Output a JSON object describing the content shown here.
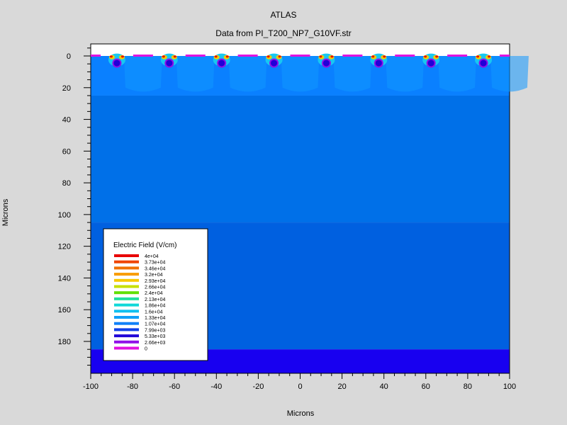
{
  "window": {
    "title": "ATLAS",
    "subtitle": "Data from PI_T200_NP7_G10VF.str"
  },
  "chart_data": {
    "type": "heatmap",
    "title": "ATLAS",
    "subtitle": "Data from PI_T200_NP7_G10VF.str",
    "xlabel": "Microns",
    "ylabel": "Microns",
    "xlim": [
      -100,
      100
    ],
    "ylim": [
      200,
      -3
    ],
    "x_ticks": [
      -100,
      -80,
      -60,
      -40,
      -20,
      0,
      20,
      40,
      60,
      80,
      100
    ],
    "y_ticks": [
      0,
      20,
      40,
      60,
      80,
      100,
      120,
      140,
      160,
      180
    ],
    "x_tick_labels": [
      "-100",
      "-80",
      "-60",
      "-40",
      "-20",
      "0",
      "20",
      "40",
      "60",
      "80",
      "100"
    ],
    "y_tick_labels": [
      "0",
      "20",
      "40",
      "60",
      "80",
      "100",
      "120",
      "140",
      "160",
      "180"
    ],
    "implant_centers_x": [
      -87.5,
      -62.5,
      -37.5,
      -12.5,
      12.5,
      37.5,
      62.5,
      87.5
    ],
    "region_boundaries_y": [
      25,
      105,
      185
    ],
    "colors": {
      "bg": "#d9d9d9",
      "plot_bg": "#ffffff",
      "surface": "#0a80ff",
      "bulk_upper": "#0070e8",
      "bulk_lower": "#0060e0",
      "bottom": "#1800f0",
      "contact": "#e010e0"
    },
    "legend": {
      "title": "Electric Field (V/cm)",
      "position": "bottom-left",
      "levels": [
        {
          "label": "4e+04",
          "color": "#e80000"
        },
        {
          "label": "3.73e+04",
          "color": "#f04400"
        },
        {
          "label": "3.46e+04",
          "color": "#f07000"
        },
        {
          "label": "3.2e+04",
          "color": "#f89c00"
        },
        {
          "label": "2.93e+04",
          "color": "#f8c800"
        },
        {
          "label": "2.66e+04",
          "color": "#c8e000"
        },
        {
          "label": "2.4e+04",
          "color": "#60e000"
        },
        {
          "label": "2.13e+04",
          "color": "#20e0a0"
        },
        {
          "label": "1.86e+04",
          "color": "#10d8d8"
        },
        {
          "label": "1.6e+04",
          "color": "#10c0f0"
        },
        {
          "label": "1.33e+04",
          "color": "#10a0f8"
        },
        {
          "label": "1.07e+04",
          "color": "#1080f8"
        },
        {
          "label": "7.99e+03",
          "color": "#1040e8"
        },
        {
          "label": "5.33e+03",
          "color": "#2000d8"
        },
        {
          "label": "2.66e+03",
          "color": "#9010e8"
        },
        {
          "label": "0",
          "color": "#e010e0"
        }
      ]
    }
  }
}
